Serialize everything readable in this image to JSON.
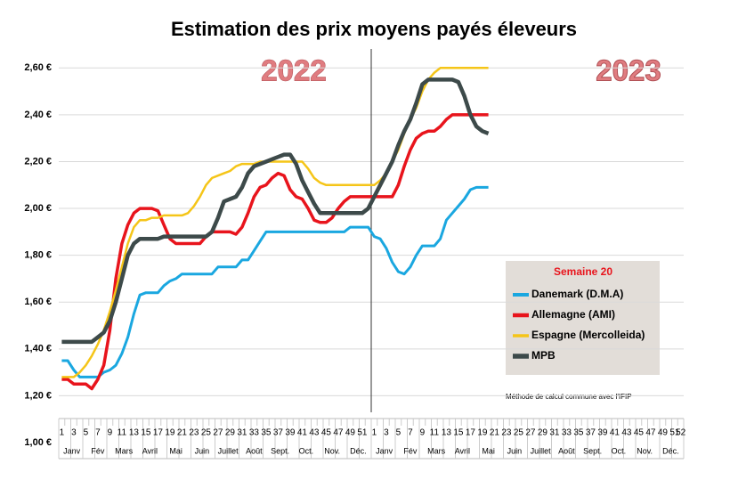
{
  "chart_data": {
    "type": "line",
    "title": "Estimation des prix moyens payés éleveurs",
    "annotations": {
      "year1": "2022",
      "year2": "2023",
      "note": "Méthode de calcul commune avec l'IFIP"
    },
    "legend_title": "Semaine 20",
    "categories": [
      "1",
      null,
      "3",
      null,
      "5",
      null,
      "7",
      null,
      "9",
      null,
      "11",
      null,
      "13",
      null,
      "15",
      null,
      "17",
      null,
      "19",
      null,
      "21",
      null,
      "23",
      null,
      "25",
      null,
      "27",
      null,
      "29",
      null,
      "31",
      null,
      "33",
      null,
      "35",
      null,
      "37",
      null,
      "39",
      null,
      "41",
      null,
      "43",
      null,
      "45",
      null,
      "47",
      null,
      "49",
      null,
      "51",
      null,
      "1",
      null,
      "3",
      null,
      "5",
      null,
      "7",
      null,
      "9",
      null,
      "11",
      null,
      "13",
      null,
      "15",
      null,
      "17",
      null,
      "19",
      null,
      "21",
      null,
      "23",
      null,
      "25",
      null,
      "27",
      null,
      "29",
      null,
      "31",
      null,
      "33",
      null,
      "35",
      null,
      "37",
      null,
      "39",
      null,
      "41",
      null,
      "43",
      null,
      "45",
      null,
      "47",
      null,
      "49",
      null,
      "51",
      "52"
    ],
    "months": [
      "Janv",
      "Fév",
      "Mars",
      "Avril",
      "Mai",
      "Juin",
      "Juillet",
      "Août",
      "Sept.",
      "Oct.",
      "Nov.",
      "Déc.",
      "Janv",
      "Fév",
      "Mars",
      "Avril",
      "Mai",
      "Juin",
      "Juillet",
      "Août",
      "Sept.",
      "Oct.",
      "Nov.",
      "Déc."
    ],
    "ylim": [
      1.0,
      2.7
    ],
    "yticks": [
      {
        "value": 1.0,
        "label": "1,00 €"
      },
      {
        "value": 1.2,
        "label": "1,20 €"
      },
      {
        "value": 1.4,
        "label": "1,40 €"
      },
      {
        "value": 1.6,
        "label": "1,60 €"
      },
      {
        "value": 1.8,
        "label": "1,80 €"
      },
      {
        "value": 2.0,
        "label": "2,00 €"
      },
      {
        "value": 2.2,
        "label": "2,20 €"
      },
      {
        "value": 2.4,
        "label": "2,40 €"
      },
      {
        "value": 2.6,
        "label": "2,60 €"
      }
    ],
    "grid": true,
    "series": [
      {
        "name": "Danemark (D.M.A)",
        "color": "#1aa7e0",
        "width": 3,
        "values": [
          1.35,
          1.35,
          1.31,
          1.28,
          1.28,
          1.28,
          1.28,
          1.3,
          1.31,
          1.33,
          1.38,
          1.45,
          1.55,
          1.63,
          1.64,
          1.64,
          1.64,
          1.67,
          1.69,
          1.7,
          1.72,
          1.72,
          1.72,
          1.72,
          1.72,
          1.72,
          1.75,
          1.75,
          1.75,
          1.75,
          1.78,
          1.78,
          1.82,
          1.86,
          1.9,
          1.9,
          1.9,
          1.9,
          1.9,
          1.9,
          1.9,
          1.9,
          1.9,
          1.9,
          1.9,
          1.9,
          1.9,
          1.9,
          1.92,
          1.92,
          1.92,
          1.92,
          1.88,
          1.87,
          1.83,
          1.77,
          1.73,
          1.72,
          1.75,
          1.8,
          1.84,
          1.84,
          1.84,
          1.87,
          1.95,
          1.98,
          2.01,
          2.04,
          2.08,
          2.09,
          2.09,
          2.09,
          null,
          null,
          null,
          null,
          null,
          null,
          null,
          null,
          null,
          null,
          null,
          null,
          null,
          null,
          null,
          null,
          null,
          null,
          null,
          null,
          null,
          null,
          null,
          null,
          null,
          null,
          null,
          null,
          null,
          null,
          null,
          null
        ]
      },
      {
        "name": "Allemagne (AMI)",
        "color": "#e8141c",
        "width": 3.5,
        "values": [
          1.27,
          1.27,
          1.25,
          1.25,
          1.25,
          1.23,
          1.27,
          1.33,
          1.48,
          1.7,
          1.85,
          1.93,
          1.98,
          2.0,
          2.0,
          2.0,
          1.99,
          1.93,
          1.87,
          1.85,
          1.85,
          1.85,
          1.85,
          1.85,
          1.88,
          1.9,
          1.9,
          1.9,
          1.9,
          1.89,
          1.92,
          1.98,
          2.05,
          2.09,
          2.1,
          2.13,
          2.15,
          2.14,
          2.08,
          2.05,
          2.04,
          2.0,
          1.95,
          1.94,
          1.94,
          1.96,
          2.0,
          2.03,
          2.05,
          2.05,
          2.05,
          2.05,
          2.05,
          2.05,
          2.05,
          2.05,
          2.1,
          2.18,
          2.25,
          2.3,
          2.32,
          2.33,
          2.33,
          2.35,
          2.38,
          2.4,
          2.4,
          2.4,
          2.4,
          2.4,
          2.4,
          2.4,
          null,
          null,
          null,
          null,
          null,
          null,
          null,
          null,
          null,
          null,
          null,
          null,
          null,
          null,
          null,
          null,
          null,
          null,
          null,
          null,
          null,
          null,
          null,
          null,
          null,
          null,
          null,
          null,
          null,
          null,
          null,
          null
        ]
      },
      {
        "name": "Espagne (Mercolleida)",
        "color": "#f5c518",
        "width": 2.5,
        "values": [
          1.28,
          1.28,
          1.28,
          1.3,
          1.33,
          1.37,
          1.42,
          1.48,
          1.56,
          1.65,
          1.75,
          1.85,
          1.92,
          1.95,
          1.95,
          1.96,
          1.96,
          1.97,
          1.97,
          1.97,
          1.97,
          1.98,
          2.01,
          2.05,
          2.1,
          2.13,
          2.14,
          2.15,
          2.16,
          2.18,
          2.19,
          2.19,
          2.19,
          2.2,
          2.2,
          2.2,
          2.2,
          2.2,
          2.2,
          2.2,
          2.2,
          2.17,
          2.13,
          2.11,
          2.1,
          2.1,
          2.1,
          2.1,
          2.1,
          2.1,
          2.1,
          2.1,
          2.1,
          2.12,
          2.15,
          2.2,
          2.25,
          2.32,
          2.38,
          2.43,
          2.5,
          2.55,
          2.58,
          2.6,
          2.6,
          2.6,
          2.6,
          2.6,
          2.6,
          2.6,
          2.6,
          2.6,
          null,
          null,
          null,
          null,
          null,
          null,
          null,
          null,
          null,
          null,
          null,
          null,
          null,
          null,
          null,
          null,
          null,
          null,
          null,
          null,
          null,
          null,
          null,
          null,
          null,
          null,
          null,
          null,
          null,
          null,
          null,
          null
        ]
      },
      {
        "name": "MPB",
        "color": "#3d4a4a",
        "width": 4.5,
        "values": [
          1.43,
          1.43,
          1.43,
          1.43,
          1.43,
          1.43,
          1.45,
          1.47,
          1.52,
          1.6,
          1.7,
          1.8,
          1.85,
          1.87,
          1.87,
          1.87,
          1.87,
          1.88,
          1.88,
          1.88,
          1.88,
          1.88,
          1.88,
          1.88,
          1.88,
          1.9,
          1.96,
          2.03,
          2.04,
          2.05,
          2.09,
          2.15,
          2.18,
          2.19,
          2.2,
          2.21,
          2.22,
          2.23,
          2.23,
          2.19,
          2.12,
          2.07,
          2.02,
          1.98,
          1.98,
          1.98,
          1.98,
          1.98,
          1.98,
          1.98,
          1.98,
          2.0,
          2.05,
          2.1,
          2.15,
          2.2,
          2.27,
          2.33,
          2.38,
          2.45,
          2.53,
          2.55,
          2.55,
          2.55,
          2.55,
          2.55,
          2.54,
          2.48,
          2.4,
          2.35,
          2.33,
          2.32,
          null,
          null,
          null,
          null,
          null,
          null,
          null,
          null,
          null,
          null,
          null,
          null,
          null,
          null,
          null,
          null,
          null,
          null,
          null,
          null,
          null,
          null,
          null,
          null,
          null,
          null,
          null,
          null,
          null,
          null,
          null,
          null
        ]
      }
    ]
  }
}
